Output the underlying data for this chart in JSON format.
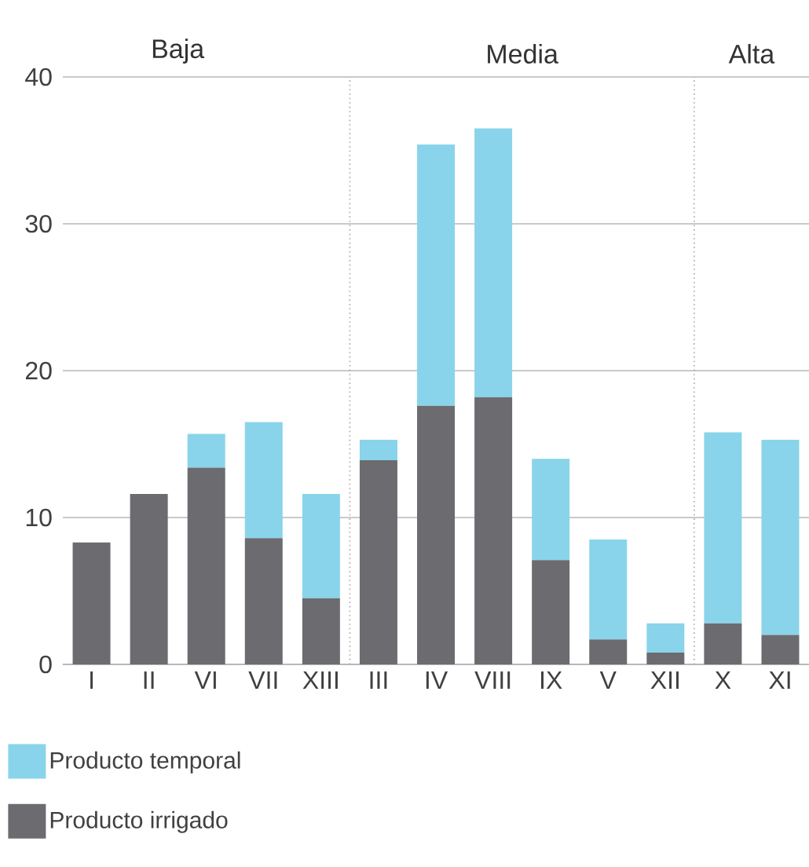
{
  "chart_data": {
    "type": "bar",
    "stacked": true,
    "categories": [
      "I",
      "II",
      "VI",
      "VII",
      "XIII",
      "III",
      "IV",
      "VIII",
      "IX",
      "V",
      "XII",
      "X",
      "XI"
    ],
    "series": [
      {
        "name": "Producto irrigado",
        "color": "#6b6b70",
        "values": [
          8.3,
          11.6,
          13.4,
          8.6,
          4.5,
          13.9,
          17.6,
          18.2,
          7.1,
          1.7,
          0.8,
          2.8,
          2.0
        ]
      },
      {
        "name": "Producto temporal",
        "color": "#89d4ea",
        "values": [
          null,
          null,
          2.3,
          7.9,
          7.1,
          1.4,
          17.8,
          18.3,
          6.9,
          6.8,
          2.0,
          13.0,
          13.3
        ]
      }
    ],
    "ylim": [
      0,
      40
    ],
    "yticks": [
      0,
      10,
      20,
      30,
      40
    ],
    "grid": "y",
    "legend": "bottom left",
    "annotations": [
      "Baja",
      "Media",
      "Alta"
    ]
  }
}
